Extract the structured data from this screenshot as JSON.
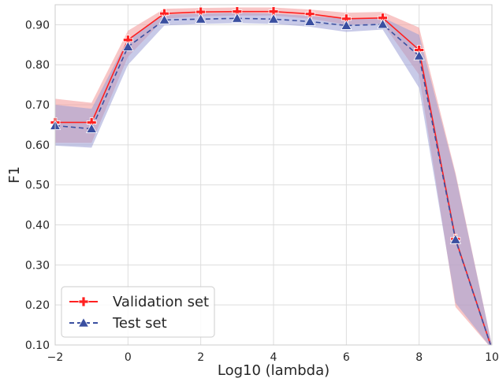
{
  "chart_data": {
    "type": "line",
    "title": "",
    "xlabel": "Log10 (lambda)",
    "ylabel": "F1",
    "xlim": [
      -2,
      10
    ],
    "ylim": [
      0.1,
      0.95
    ],
    "x_ticks": [
      "−2",
      "0",
      "2",
      "4",
      "6",
      "8",
      "10"
    ],
    "x_tick_values": [
      -2,
      0,
      2,
      4,
      6,
      8,
      10
    ],
    "y_ticks": [
      "0.10",
      "0.20",
      "0.30",
      "0.40",
      "0.50",
      "0.60",
      "0.70",
      "0.80",
      "0.90"
    ],
    "y_tick_values": [
      0.1,
      0.2,
      0.3,
      0.4,
      0.5,
      0.6,
      0.7,
      0.8,
      0.9
    ],
    "grid": true,
    "legend_position": "bottom-left",
    "x": [
      -2,
      -1,
      0,
      1,
      2,
      3,
      4,
      5,
      6,
      7,
      8,
      9,
      10
    ],
    "series": [
      {
        "name": "Validation set",
        "color": "#ff2020",
        "band_color": "#f4a0a0",
        "marker": "plus",
        "line_style": "solid",
        "values": [
          0.656,
          0.656,
          0.862,
          0.928,
          0.932,
          0.933,
          0.933,
          0.927,
          0.915,
          0.917,
          0.837,
          0.365,
          0.09
        ],
        "lower": [
          0.605,
          0.605,
          0.82,
          0.915,
          0.921,
          0.923,
          0.923,
          0.915,
          0.9,
          0.903,
          0.775,
          0.195,
          0.09
        ],
        "upper": [
          0.715,
          0.705,
          0.885,
          0.94,
          0.942,
          0.943,
          0.943,
          0.938,
          0.93,
          0.932,
          0.893,
          0.53,
          0.1
        ]
      },
      {
        "name": "Test set",
        "color": "#3a4fa0",
        "band_color": "#9a9fd6",
        "marker": "triangle",
        "line_style": "dashed",
        "values": [
          0.648,
          0.64,
          0.845,
          0.912,
          0.914,
          0.916,
          0.914,
          0.908,
          0.898,
          0.901,
          0.822,
          0.363,
          0.09
        ],
        "lower": [
          0.598,
          0.593,
          0.8,
          0.898,
          0.902,
          0.904,
          0.902,
          0.895,
          0.882,
          0.888,
          0.742,
          0.205,
          0.09
        ],
        "upper": [
          0.7,
          0.69,
          0.865,
          0.925,
          0.928,
          0.93,
          0.928,
          0.922,
          0.915,
          0.918,
          0.875,
          0.525,
          0.1
        ]
      }
    ]
  }
}
